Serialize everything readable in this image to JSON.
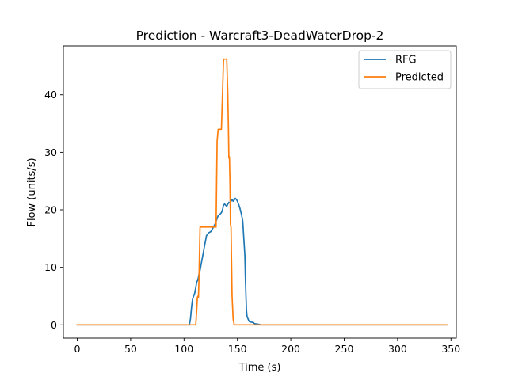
{
  "chart_data": {
    "type": "line",
    "title": "Prediction - Warcraft3-DeadWaterDrop-2",
    "xlabel": "Time (s)",
    "ylabel": "Flow (units/s)",
    "xlim": [
      -13,
      355
    ],
    "ylim": [
      -2.3,
      48.5
    ],
    "xticks": [
      0,
      50,
      100,
      150,
      200,
      250,
      300,
      350
    ],
    "yticks": [
      0,
      10,
      20,
      30,
      40
    ],
    "grid": false,
    "legend_position": "top-right",
    "series": [
      {
        "name": "RFG",
        "color": "#1f77b4",
        "points": [
          [
            0,
            0
          ],
          [
            105,
            0
          ],
          [
            106,
            1
          ],
          [
            107,
            3
          ],
          [
            108,
            4.5
          ],
          [
            110,
            5.5
          ],
          [
            111,
            6.5
          ],
          [
            112,
            7.5
          ],
          [
            113,
            7.8
          ],
          [
            114,
            8.8
          ],
          [
            115,
            9.5
          ],
          [
            116,
            10.5
          ],
          [
            117,
            11.5
          ],
          [
            118,
            12.5
          ],
          [
            119,
            13.5
          ],
          [
            120,
            14.5
          ],
          [
            121,
            15.5
          ],
          [
            123,
            16
          ],
          [
            125,
            16.2
          ],
          [
            127,
            16.8
          ],
          [
            129,
            17.5
          ],
          [
            131,
            18.5
          ],
          [
            132,
            19
          ],
          [
            134,
            19.3
          ],
          [
            135,
            19.5
          ],
          [
            136,
            20
          ],
          [
            137,
            20.8
          ],
          [
            138,
            21
          ],
          [
            139,
            20.8
          ],
          [
            140,
            20.6
          ],
          [
            141,
            21
          ],
          [
            142,
            21.3
          ],
          [
            143,
            21.2
          ],
          [
            144,
            21.5
          ],
          [
            145,
            21.8
          ],
          [
            146,
            21.5
          ],
          [
            147,
            21.7
          ],
          [
            148,
            22
          ],
          [
            149,
            21.8
          ],
          [
            150,
            21.5
          ],
          [
            151,
            21
          ],
          [
            152,
            20.5
          ],
          [
            153,
            19.8
          ],
          [
            154,
            19
          ],
          [
            155,
            18
          ],
          [
            156,
            15
          ],
          [
            157,
            12
          ],
          [
            157.5,
            8
          ],
          [
            158,
            5
          ],
          [
            158.5,
            2.5
          ],
          [
            159,
            1.5
          ],
          [
            160,
            1
          ],
          [
            161,
            0.6
          ],
          [
            162,
            0.5
          ],
          [
            165,
            0.4
          ],
          [
            166,
            0.2
          ],
          [
            170,
            0.1
          ],
          [
            172,
            0
          ],
          [
            346,
            0
          ]
        ]
      },
      {
        "name": "Predicted",
        "color": "#ff7f0e",
        "points": [
          [
            0,
            0
          ],
          [
            111,
            0
          ],
          [
            112,
            3
          ],
          [
            112.5,
            4.8
          ],
          [
            113,
            5
          ],
          [
            113.5,
            4.8
          ],
          [
            114,
            8
          ],
          [
            115,
            17
          ],
          [
            130,
            17
          ],
          [
            131,
            32
          ],
          [
            131.5,
            33
          ],
          [
            132,
            34
          ],
          [
            135,
            34
          ],
          [
            136,
            40
          ],
          [
            137,
            46.2
          ],
          [
            140,
            46.2
          ],
          [
            141,
            40
          ],
          [
            141.5,
            35
          ],
          [
            142,
            29
          ],
          [
            142.5,
            29.2
          ],
          [
            143,
            25
          ],
          [
            143.5,
            17.5
          ],
          [
            144,
            17
          ],
          [
            145,
            5
          ],
          [
            146,
            1
          ],
          [
            147,
            0
          ],
          [
            346,
            0
          ]
        ]
      }
    ]
  }
}
